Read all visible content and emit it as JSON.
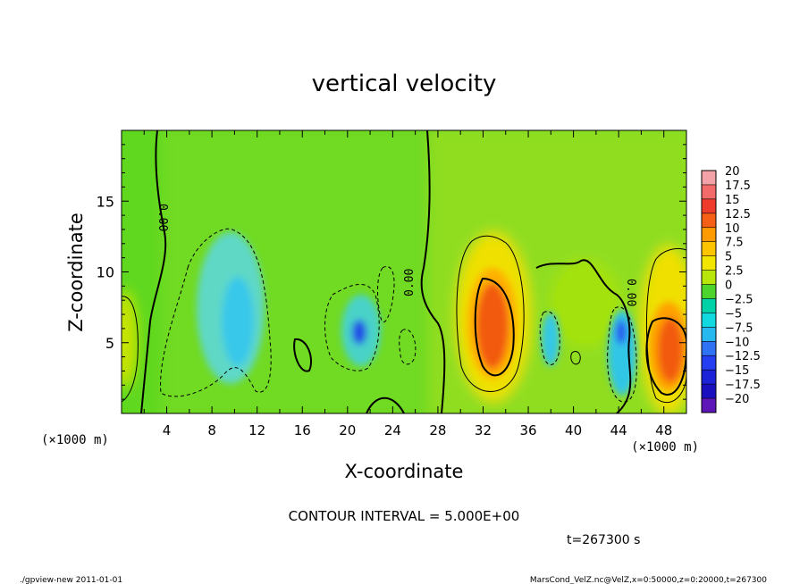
{
  "chart_data": {
    "type": "heatmap",
    "title": "vertical velocity",
    "xlabel": "X-coordinate",
    "ylabel": "Z-coordinate",
    "x_unit_label": "(×1000 m)",
    "y_unit_label": "(×1000 m)",
    "xlim": [
      0,
      50
    ],
    "ylim": [
      0,
      20
    ],
    "x_ticks": [
      "4",
      "8",
      "12",
      "16",
      "20",
      "24",
      "28",
      "32",
      "36",
      "40",
      "44",
      "48"
    ],
    "x_tick_values": [
      4,
      8,
      12,
      16,
      20,
      24,
      28,
      32,
      36,
      40,
      44,
      48
    ],
    "y_ticks": [
      "5",
      "10",
      "15"
    ],
    "y_tick_values": [
      5,
      10,
      15
    ],
    "colorbar": {
      "labels": [
        "20",
        "17.5",
        "15",
        "12.5",
        "10",
        "7.5",
        "5",
        "2.5",
        "0",
        "−2.5",
        "−5",
        "−7.5",
        "−10",
        "−12.5",
        "−15",
        "−17.5",
        "−20"
      ],
      "levels": [
        20,
        17.5,
        15,
        12.5,
        10,
        7.5,
        5,
        2.5,
        0,
        -2.5,
        -5,
        -7.5,
        -10,
        -12.5,
        -15,
        -17.5,
        -20
      ],
      "colors": [
        "#f3a3a8",
        "#f26a6a",
        "#ef3b2c",
        "#f56016",
        "#ff9a00",
        "#ffc400",
        "#f2e600",
        "#b8e60a",
        "#4cd42c",
        "#00d2a8",
        "#12d8df",
        "#27b8f0",
        "#2f72f3",
        "#243ef2",
        "#1c22d8",
        "#1a0fbe",
        "#5f16b8"
      ]
    },
    "contour_labels": [
      "0.00",
      "0.00",
      "0.00"
    ],
    "grid": false,
    "legend_placement": "right"
  },
  "contour_interval": "CONTOUR INTERVAL = 5.000E+00",
  "time_label": "t=267300 s",
  "footer_left": "./gpview-new   2011-01-01",
  "footer_right": "MarsCond_VelZ.nc@VelZ,x=0:50000,z=0:20000,t=267300"
}
